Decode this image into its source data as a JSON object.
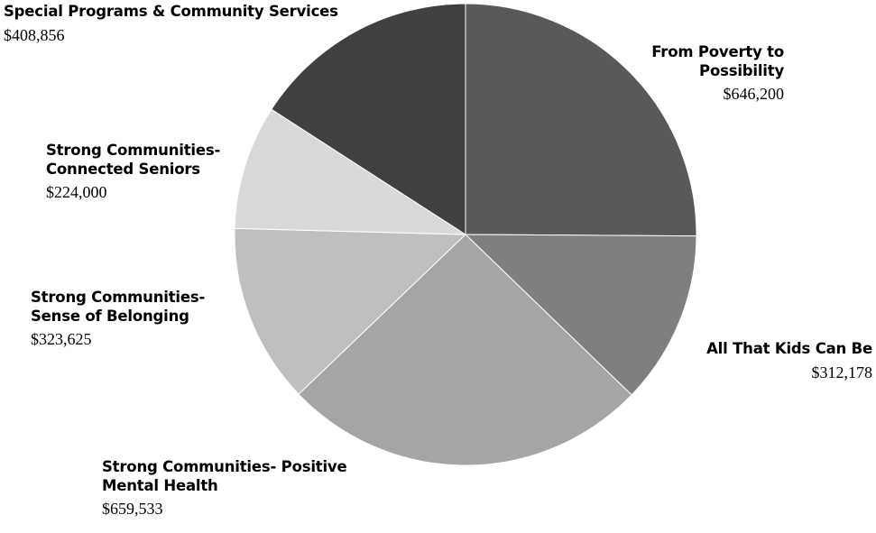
{
  "chart_data": {
    "type": "pie",
    "title": "",
    "start_angle_deg": 0,
    "direction": "clockwise",
    "slices": [
      {
        "name_lines": [
          "From Poverty to",
          "Possibility"
        ],
        "value": 646200,
        "value_label": "$646,200",
        "color": "#595959"
      },
      {
        "name_lines": [
          "All That Kids Can Be"
        ],
        "value": 312178,
        "value_label": "$312,178",
        "color": "#7f7f7f"
      },
      {
        "name_lines": [
          "Strong Communities- Positive",
          "Mental Health"
        ],
        "value": 659533,
        "value_label": "$659,533",
        "color": "#a5a5a5"
      },
      {
        "name_lines": [
          "Strong Communities-",
          "Sense of Belonging"
        ],
        "value": 323625,
        "value_label": "$323,625",
        "color": "#bfbfbf"
      },
      {
        "name_lines": [
          "Strong Communities-",
          "Connected Seniors"
        ],
        "value": 224000,
        "value_label": "$224,000",
        "color": "#d9d9d9"
      },
      {
        "name_lines": [
          "Special Programs & Community Services"
        ],
        "value": 408856,
        "value_label": "$408,856",
        "color": "#404040"
      }
    ]
  }
}
